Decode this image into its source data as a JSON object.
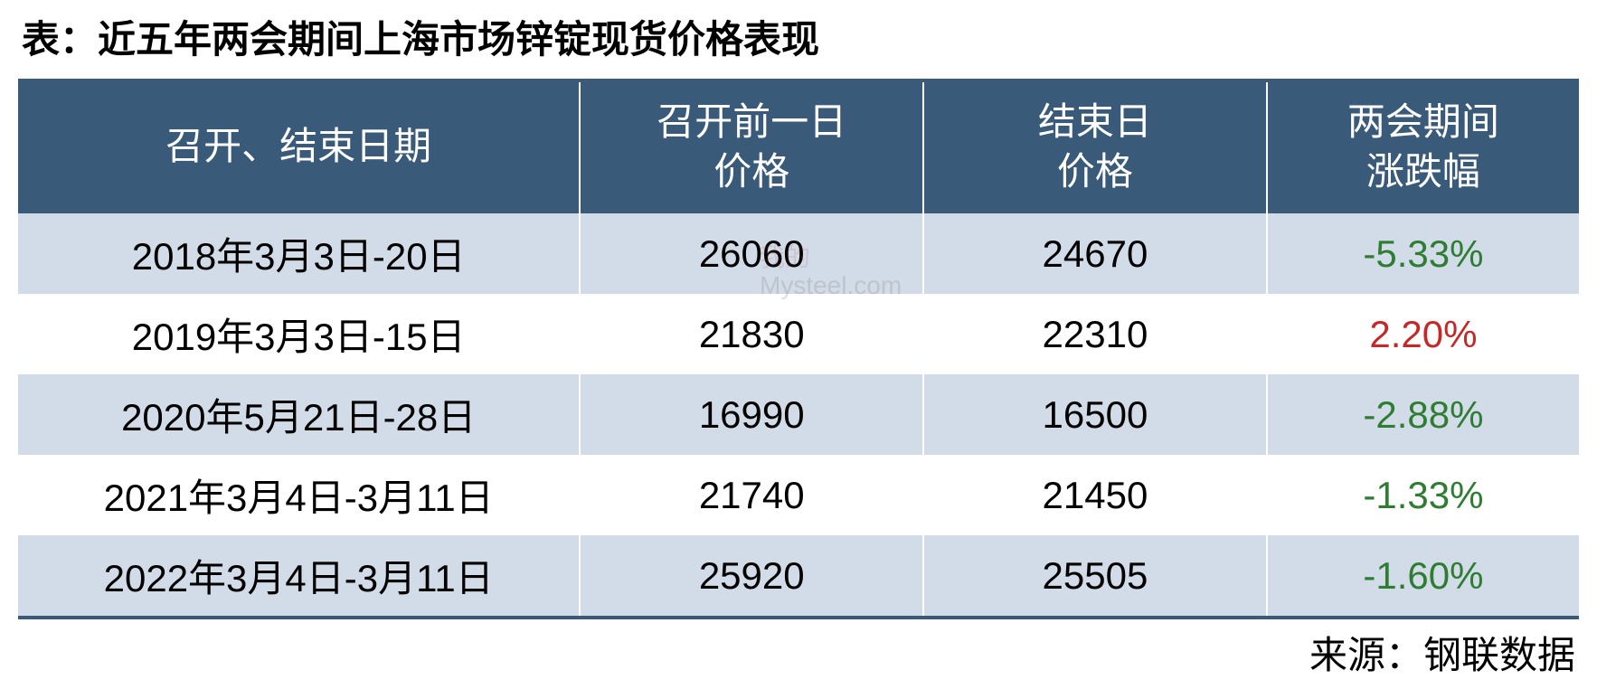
{
  "title": "表：近五年两会期间上海市场锌锭现货价格表现",
  "columns": [
    "召开、结束日期",
    "召开前一日\n价格",
    "结束日\n价格",
    "两会期间\n涨跌幅"
  ],
  "rows": [
    {
      "dates": "2018年3月3日-20日",
      "before": "26060",
      "end": "24670",
      "change": "-5.33%",
      "change_color": "#2e7d32"
    },
    {
      "dates": "2019年3月3日-15日",
      "before": "21830",
      "end": "22310",
      "change": "2.20%",
      "change_color": "#c62828"
    },
    {
      "dates": "2020年5月21日-28日",
      "before": "16990",
      "end": "16500",
      "change": "-2.88%",
      "change_color": "#2e7d32"
    },
    {
      "dates": "2021年3月4日-3月11日",
      "before": "21740",
      "end": "21450",
      "change": "-1.33%",
      "change_color": "#2e7d32"
    },
    {
      "dates": "2022年3月4日-3月11日",
      "before": "25920",
      "end": "25505",
      "change": "-1.60%",
      "change_color": "#2e7d32"
    }
  ],
  "source_label": "来源：钢联数据",
  "styling": {
    "header_bg": "#3a5a7a",
    "header_fg": "#ffffff",
    "row_alt_bg": "#d2dce8",
    "row_bg": "#ffffff",
    "border_color": "#3a5a7a",
    "title_fontsize": 42,
    "cell_fontsize": 42,
    "negative_color": "#2e7d32",
    "positive_color": "#c62828",
    "column_widths_pct": [
      36,
      22,
      22,
      20
    ]
  },
  "watermark": {
    "line1": "我的",
    "line2": "Mysteel.com"
  }
}
